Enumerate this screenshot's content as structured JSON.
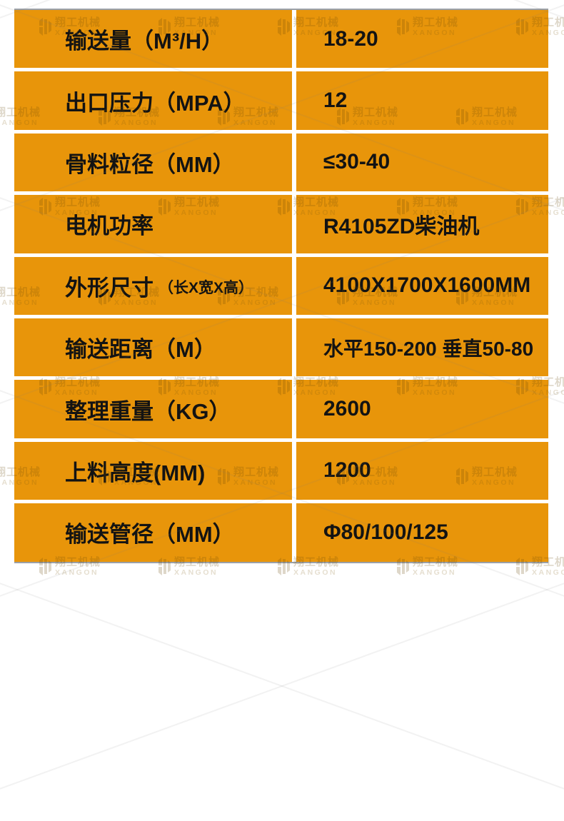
{
  "table": {
    "rows": [
      {
        "label": "输送量（M³/H）",
        "label_suffix": "",
        "value": "18-20"
      },
      {
        "label": "出口压力（MPA）",
        "label_suffix": "",
        "value": "12"
      },
      {
        "label": "骨料粒径（MM）",
        "label_suffix": "",
        "value": "≤30-40"
      },
      {
        "label": "电机功率",
        "label_suffix": "",
        "value": "R4105ZD柴油机"
      },
      {
        "label": "外形尺寸",
        "label_suffix": "（长X宽X高）",
        "value": "4100X1700X1600MM"
      },
      {
        "label": "输送距离（M）",
        "label_suffix": "",
        "value": "水平150-200 垂直50-80"
      },
      {
        "label": "整理重量（KG）",
        "label_suffix": "",
        "value": "2600"
      },
      {
        "label": "上料高度(MM)",
        "label_suffix": "",
        "value": "1200"
      },
      {
        "label": "输送管径（MM）",
        "label_suffix": "",
        "value": "Φ80/100/125"
      }
    ]
  },
  "watermark": {
    "brand_cn": "翔工机械",
    "brand_en": "XANGON"
  },
  "colors": {
    "cell_orange": "#e8950a",
    "text_black": "#131313",
    "divider_white": "#ffffff",
    "edge_grey": "#9aa0a8"
  }
}
